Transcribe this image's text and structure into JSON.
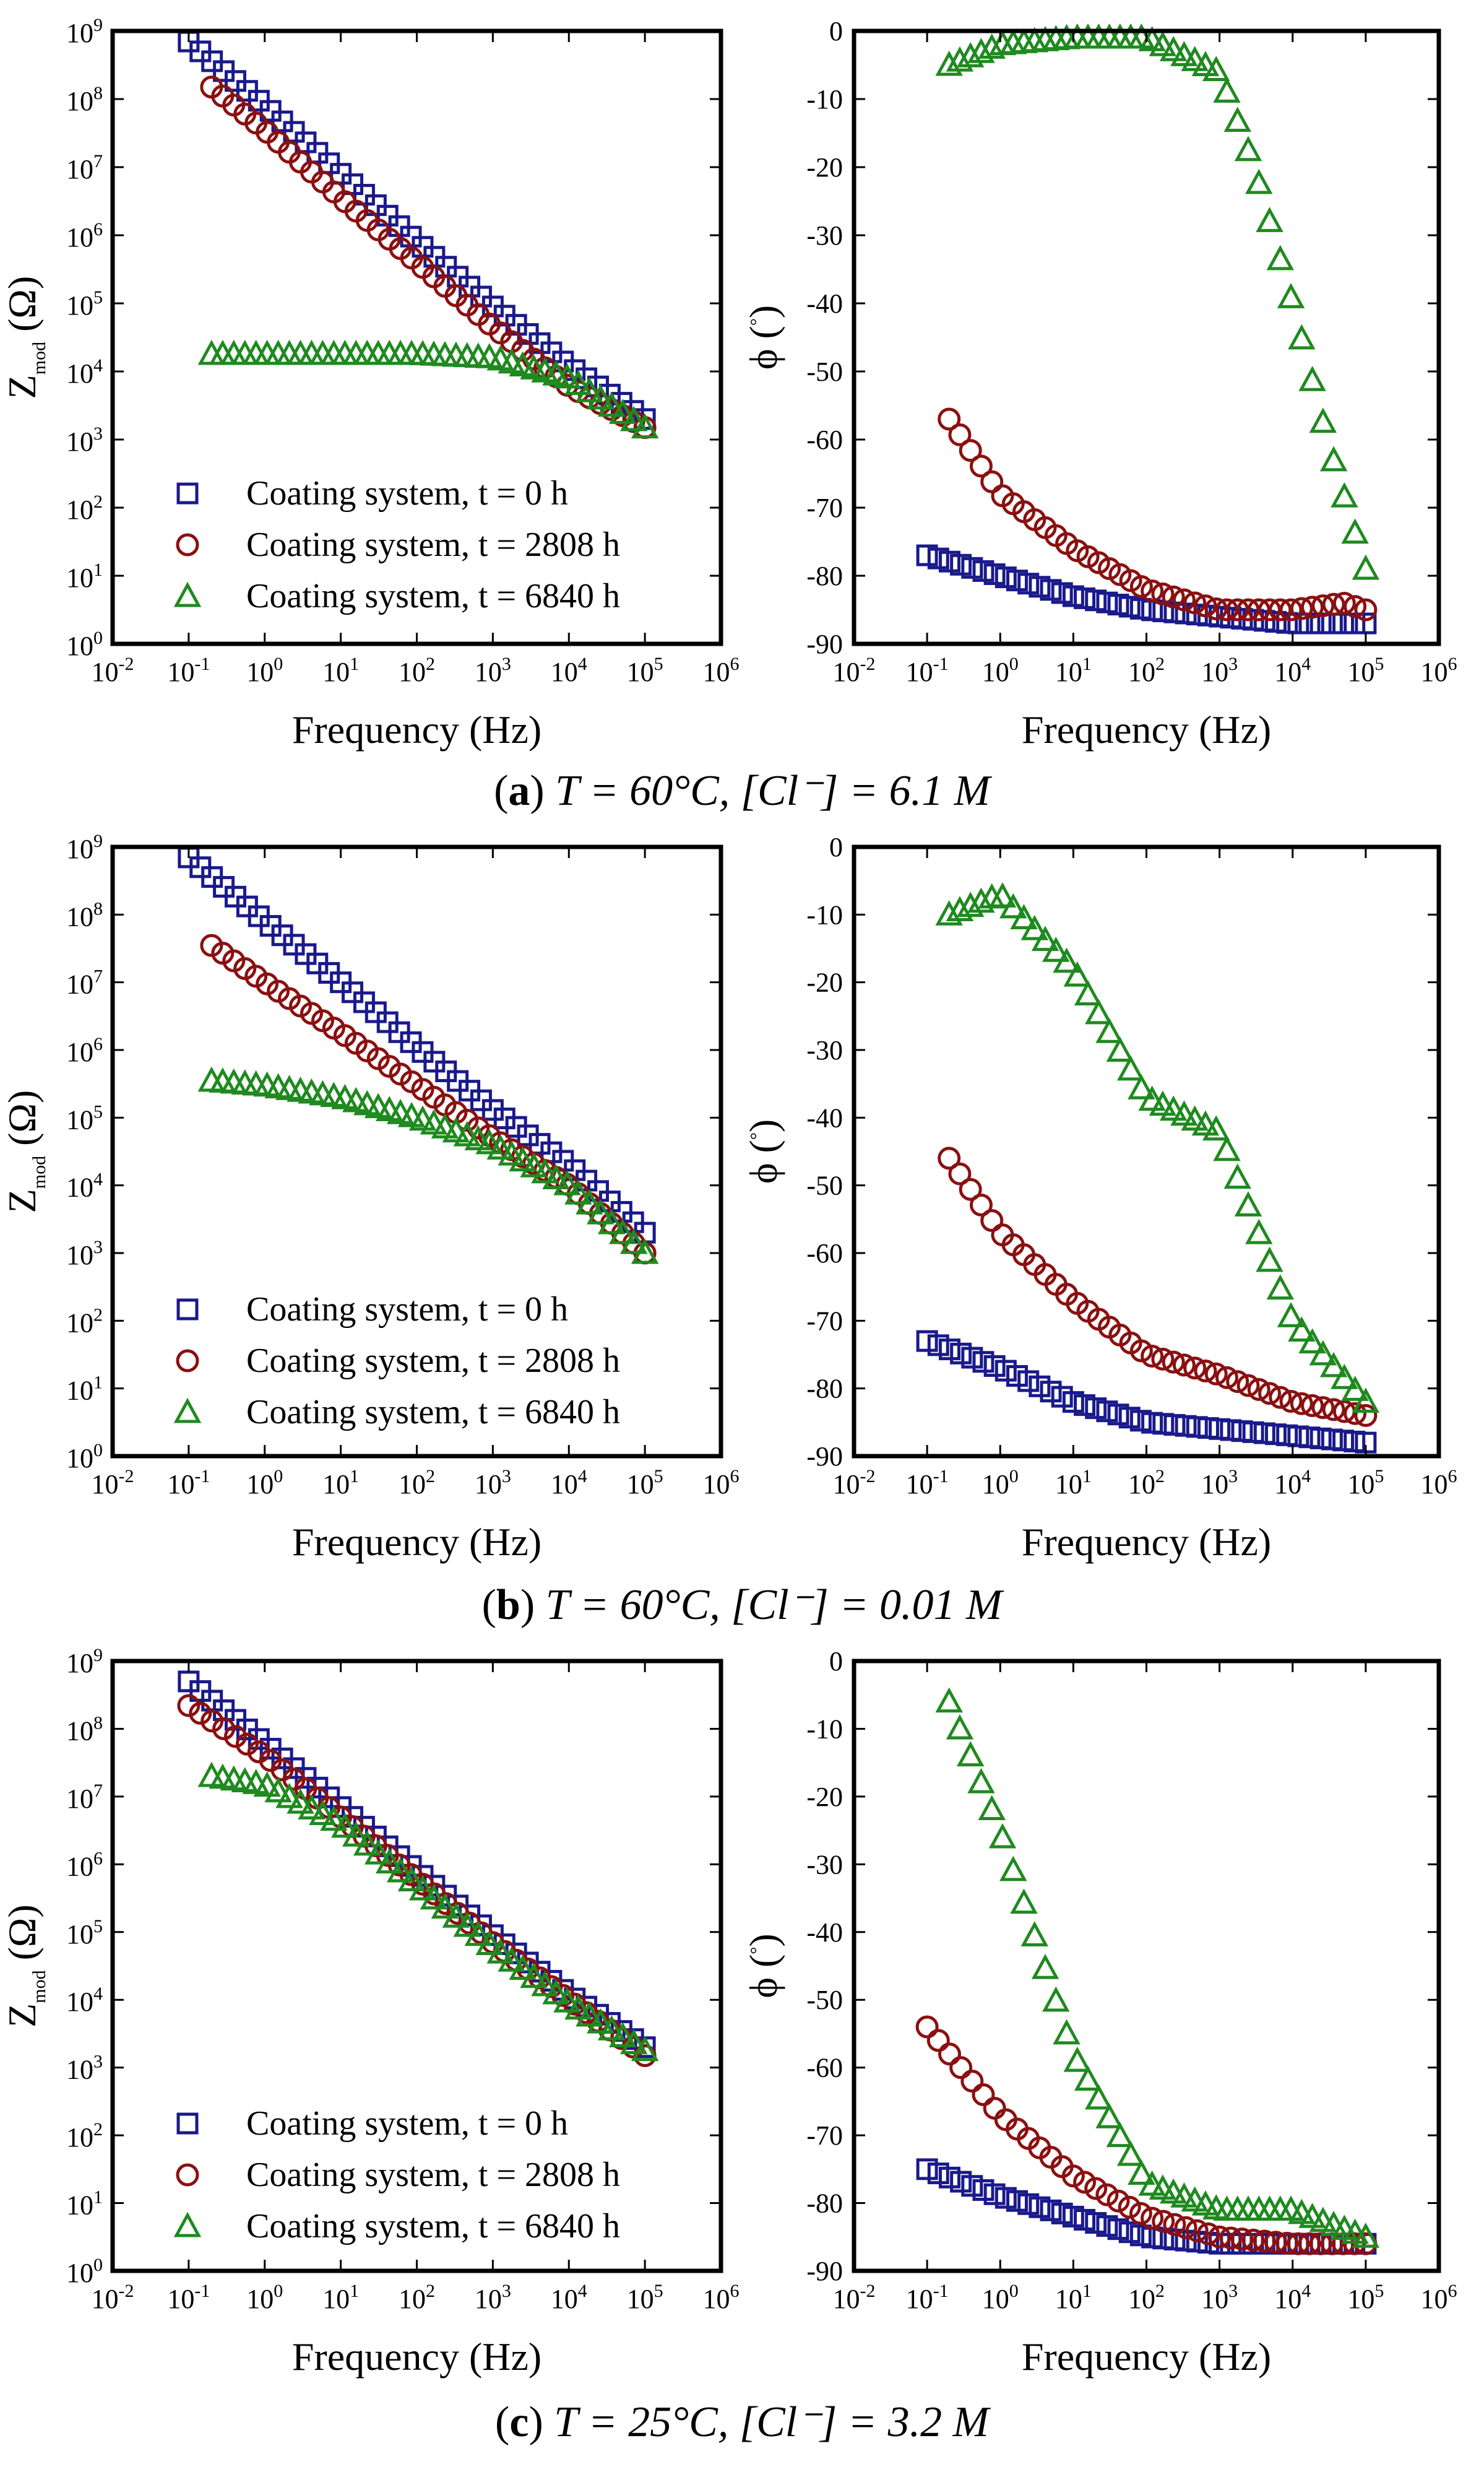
{
  "figure": {
    "captions": [
      {
        "letter": "a",
        "text": "T = 60°C, [Cl⁻] = 6.1 M"
      },
      {
        "letter": "b",
        "text": "T = 60°C, [Cl⁻] = 0.01 M"
      },
      {
        "letter": "c",
        "text": "T = 25°C, [Cl⁻] = 3.2 M"
      }
    ]
  },
  "legend": {
    "entries": [
      {
        "label": "Coating system, t = 0 h",
        "marker": "square",
        "color": "#1a1a8c"
      },
      {
        "label": "Coating system, t = 2808 h",
        "marker": "circle",
        "color": "#8b1010"
      },
      {
        "label": "Coating system, t = 6840 h",
        "marker": "triangle",
        "color": "#1f8a1f"
      }
    ]
  },
  "axes": {
    "xlabel": "Frequency (Hz)",
    "ylabel_mod": "Z_mod (Ω)",
    "ylabel_phase": "ϕ (°)",
    "x_ticks": [
      "10-2",
      "10-1",
      "100",
      "101",
      "102",
      "103",
      "104",
      "105",
      "106"
    ],
    "y_ticks_mod": [
      "100",
      "101",
      "102",
      "103",
      "104",
      "105",
      "106",
      "107",
      "108",
      "109"
    ],
    "y_ticks_phase": [
      "0",
      "-10",
      "-20",
      "-30",
      "-40",
      "-50",
      "-60",
      "-70",
      "-80",
      "-90"
    ]
  },
  "chart_data": [
    {
      "panel": "a-modulus",
      "type": "scatter",
      "xscale": "log",
      "yscale": "log",
      "xlim": [
        0.01,
        1000000
      ],
      "ylim": [
        1,
        1000000000
      ],
      "xlabel": "Frequency (Hz)",
      "ylabel": "Z_mod (Ω)",
      "series": [
        {
          "name": "Coating system, t = 0 h",
          "x": [
            0.1,
            1,
            10,
            100,
            1000,
            10000,
            100000
          ],
          "y": [
            700000000,
            80000000,
            8000000,
            800000,
            90000,
            12000,
            2000
          ]
        },
        {
          "name": "Coating system, t = 2808 h",
          "x": [
            0.2,
            1,
            10,
            100,
            1000,
            10000,
            100000
          ],
          "y": [
            150000000,
            35000000,
            3500000,
            400000,
            45000,
            6000,
            1500
          ]
        },
        {
          "name": "Coating system, t = 6840 h",
          "x": [
            0.2,
            1,
            10,
            100,
            1000,
            10000,
            100000
          ],
          "y": [
            18000,
            18000,
            18000,
            18000,
            16000,
            8000,
            1500
          ]
        }
      ]
    },
    {
      "panel": "a-phase",
      "type": "scatter",
      "xscale": "log",
      "yscale": "linear",
      "xlim": [
        0.01,
        1000000
      ],
      "ylim": [
        -90,
        0
      ],
      "xlabel": "Frequency (Hz)",
      "ylabel": "ϕ (°)",
      "series": [
        {
          "name": "Coating system, t = 0 h",
          "x": [
            0.1,
            1,
            10,
            100,
            1000,
            10000,
            100000
          ],
          "y": [
            -77,
            -80,
            -83,
            -85,
            -86,
            -87,
            -87
          ]
        },
        {
          "name": "Coating system, t = 2808 h",
          "x": [
            0.2,
            1,
            10,
            100,
            1000,
            10000,
            50000,
            100000
          ],
          "y": [
            -57,
            -68,
            -76,
            -82,
            -85,
            -85,
            -84,
            -85
          ]
        },
        {
          "name": "Coating system, t = 6840 h",
          "x": [
            0.2,
            1,
            10,
            100,
            1000,
            3000,
            10000,
            30000,
            100000
          ],
          "y": [
            -5,
            -2,
            -1,
            -1,
            -6,
            -20,
            -40,
            -60,
            -79
          ]
        }
      ]
    },
    {
      "panel": "b-modulus",
      "type": "scatter",
      "xscale": "log",
      "yscale": "log",
      "xlim": [
        0.01,
        1000000
      ],
      "ylim": [
        1,
        1000000000
      ],
      "xlabel": "Frequency (Hz)",
      "ylabel": "Z_mod (Ω)",
      "series": [
        {
          "name": "Coating system, t = 0 h",
          "x": [
            0.1,
            1,
            10,
            100,
            1000,
            10000,
            100000
          ],
          "y": [
            700000000,
            80000000,
            10000000,
            1100000,
            130000,
            20000,
            2000
          ]
        },
        {
          "name": "Coating system, t = 2808 h",
          "x": [
            0.2,
            1,
            10,
            100,
            1000,
            10000,
            100000
          ],
          "y": [
            35000000,
            10000000,
            1800000,
            300000,
            50000,
            10000,
            1000
          ]
        },
        {
          "name": "Coating system, t = 6840 h",
          "x": [
            0.2,
            1,
            10,
            100,
            1000,
            10000,
            100000
          ],
          "y": [
            350000,
            300000,
            200000,
            100000,
            40000,
            10000,
            1000
          ]
        }
      ]
    },
    {
      "panel": "b-phase",
      "type": "scatter",
      "xscale": "log",
      "yscale": "linear",
      "xlim": [
        0.01,
        1000000
      ],
      "ylim": [
        -90,
        0
      ],
      "xlabel": "Frequency (Hz)",
      "ylabel": "ϕ (°)",
      "series": [
        {
          "name": "Coating system, t = 0 h",
          "x": [
            0.1,
            1,
            10,
            100,
            1000,
            10000,
            100000
          ],
          "y": [
            -73,
            -77,
            -82,
            -85,
            -86,
            -87,
            -88
          ]
        },
        {
          "name": "Coating system, t = 2808 h",
          "x": [
            0.2,
            1,
            10,
            100,
            1000,
            10000,
            100000
          ],
          "y": [
            -46,
            -57,
            -67,
            -75,
            -78,
            -82,
            -84
          ]
        },
        {
          "name": "Coating system, t = 6840 h",
          "x": [
            0.2,
            1,
            10,
            100,
            1000,
            10000,
            100000
          ],
          "y": [
            -10,
            -7,
            -18,
            -37,
            -42,
            -70,
            -82
          ]
        }
      ]
    },
    {
      "panel": "c-modulus",
      "type": "scatter",
      "xscale": "log",
      "yscale": "log",
      "xlim": [
        0.01,
        1000000
      ],
      "ylim": [
        1,
        1000000000
      ],
      "xlabel": "Frequency (Hz)",
      "ylabel": "Z_mod (Ω)",
      "series": [
        {
          "name": "Coating system, t = 0 h",
          "x": [
            0.1,
            1,
            10,
            100,
            1000,
            10000,
            100000
          ],
          "y": [
            500000000,
            60000000,
            7000000,
            800000,
            90000,
            12000,
            2000
          ]
        },
        {
          "name": "Coating system, t = 2808 h",
          "x": [
            0.1,
            1,
            10,
            100,
            1000,
            10000,
            100000
          ],
          "y": [
            220000000,
            40000000,
            5000000,
            600000,
            70000,
            10000,
            1500
          ]
        },
        {
          "name": "Coating system, t = 6840 h",
          "x": [
            0.2,
            1,
            10,
            100,
            1000,
            10000,
            100000
          ],
          "y": [
            20000000,
            15000000,
            4000000,
            500000,
            60000,
            9000,
            1800
          ]
        }
      ]
    },
    {
      "panel": "c-phase",
      "type": "scatter",
      "xscale": "log",
      "yscale": "linear",
      "xlim": [
        0.01,
        1000000
      ],
      "ylim": [
        -90,
        0
      ],
      "xlabel": "Frequency (Hz)",
      "ylabel": "ϕ (°)",
      "series": [
        {
          "name": "Coating system, t = 0 h",
          "x": [
            0.1,
            1,
            10,
            100,
            1000,
            10000,
            100000
          ],
          "y": [
            -75,
            -79,
            -82,
            -85,
            -86,
            -86,
            -86
          ]
        },
        {
          "name": "Coating system, t = 2808 h",
          "x": [
            0.1,
            1,
            10,
            100,
            1000,
            10000,
            100000
          ],
          "y": [
            -54,
            -67,
            -76,
            -82,
            -85,
            -86,
            -86
          ]
        },
        {
          "name": "Coating system, t = 6840 h",
          "x": [
            0.2,
            1,
            10,
            100,
            1000,
            10000,
            100000
          ],
          "y": [
            -6,
            -25,
            -58,
            -77,
            -81,
            -81,
            -85
          ]
        }
      ]
    }
  ]
}
